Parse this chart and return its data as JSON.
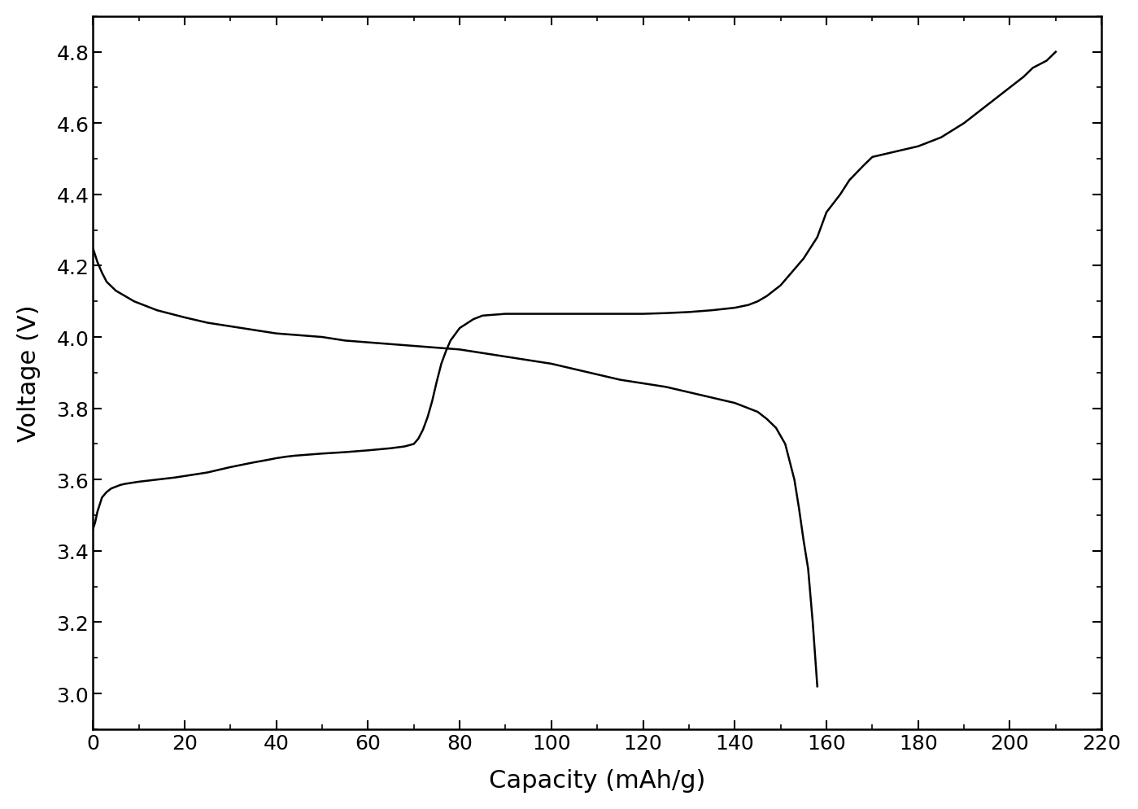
{
  "title": "",
  "xlabel": "Capacity (mAh/g)",
  "ylabel": "Voltage (V)",
  "xlim": [
    0,
    220
  ],
  "ylim": [
    2.9,
    4.9
  ],
  "xticks": [
    0,
    20,
    40,
    60,
    80,
    100,
    120,
    140,
    160,
    180,
    200,
    220
  ],
  "yticks": [
    3.0,
    3.2,
    3.4,
    3.6,
    3.8,
    4.0,
    4.2,
    4.4,
    4.6,
    4.8
  ],
  "line_color": "#000000",
  "line_width": 1.8,
  "background_color": "#ffffff",
  "discharge_x": [
    0,
    0.5,
    1,
    2,
    3,
    5,
    7,
    9,
    11,
    14,
    17,
    20,
    25,
    30,
    35,
    40,
    45,
    50,
    55,
    60,
    65,
    70,
    75,
    80,
    85,
    90,
    95,
    100,
    105,
    110,
    115,
    120,
    125,
    130,
    135,
    140,
    143,
    145,
    147,
    149,
    151,
    153,
    154,
    155,
    156,
    157,
    158
  ],
  "discharge_y": [
    4.25,
    4.23,
    4.21,
    4.18,
    4.155,
    4.13,
    4.115,
    4.1,
    4.09,
    4.075,
    4.065,
    4.055,
    4.04,
    4.03,
    4.02,
    4.01,
    4.005,
    4.0,
    3.99,
    3.985,
    3.98,
    3.975,
    3.97,
    3.965,
    3.955,
    3.945,
    3.935,
    3.925,
    3.91,
    3.895,
    3.88,
    3.87,
    3.86,
    3.845,
    3.83,
    3.815,
    3.8,
    3.79,
    3.77,
    3.745,
    3.7,
    3.6,
    3.52,
    3.43,
    3.35,
    3.2,
    3.02
  ],
  "charge_x": [
    0,
    0.5,
    1,
    2,
    3,
    4,
    5,
    6,
    7,
    8,
    9,
    10,
    12,
    14,
    16,
    18,
    20,
    25,
    30,
    35,
    38,
    40,
    42,
    44,
    46,
    48,
    50,
    55,
    60,
    65,
    68,
    70,
    71,
    72,
    73,
    74,
    75,
    76,
    77,
    78,
    80,
    83,
    85,
    90,
    95,
    100,
    105,
    110,
    115,
    120,
    125,
    130,
    135,
    140,
    143,
    145,
    147,
    150,
    152,
    155,
    158,
    160,
    163,
    165,
    168,
    170,
    175,
    180,
    185,
    190,
    195,
    200,
    203,
    205,
    208,
    210
  ],
  "charge_y": [
    3.46,
    3.48,
    3.51,
    3.55,
    3.565,
    3.575,
    3.58,
    3.585,
    3.588,
    3.59,
    3.592,
    3.594,
    3.597,
    3.6,
    3.603,
    3.606,
    3.61,
    3.62,
    3.635,
    3.648,
    3.655,
    3.66,
    3.664,
    3.667,
    3.669,
    3.671,
    3.673,
    3.677,
    3.682,
    3.688,
    3.693,
    3.7,
    3.715,
    3.74,
    3.775,
    3.82,
    3.875,
    3.925,
    3.96,
    3.99,
    4.025,
    4.05,
    4.06,
    4.065,
    4.065,
    4.065,
    4.065,
    4.065,
    4.065,
    4.065,
    4.067,
    4.07,
    4.075,
    4.082,
    4.09,
    4.1,
    4.115,
    4.145,
    4.175,
    4.22,
    4.28,
    4.35,
    4.4,
    4.44,
    4.48,
    4.505,
    4.52,
    4.535,
    4.56,
    4.6,
    4.65,
    4.7,
    4.73,
    4.755,
    4.775,
    4.8
  ]
}
